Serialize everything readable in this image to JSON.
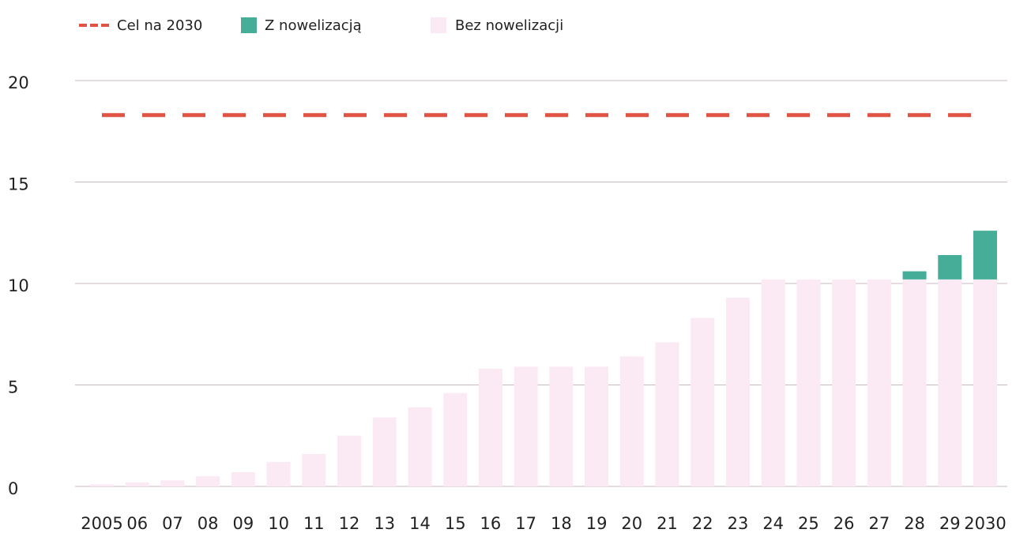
{
  "chart_data": {
    "type": "bar",
    "stacked": true,
    "categories": [
      "2005",
      "06",
      "07",
      "08",
      "09",
      "10",
      "11",
      "12",
      "13",
      "14",
      "15",
      "16",
      "17",
      "18",
      "19",
      "20",
      "21",
      "22",
      "23",
      "24",
      "25",
      "26",
      "27",
      "28",
      "29",
      "2030"
    ],
    "series": [
      {
        "name": "Bez nowelizacji",
        "color": "#fbe9f4",
        "values": [
          0.1,
          0.2,
          0.3,
          0.5,
          0.7,
          1.2,
          1.6,
          2.5,
          3.4,
          3.9,
          4.6,
          5.8,
          5.9,
          5.9,
          5.9,
          6.4,
          7.1,
          8.3,
          9.3,
          10.2,
          10.2,
          10.2,
          10.2,
          10.2,
          10.2,
          10.2
        ]
      },
      {
        "name": "Z nowelizacją",
        "color": "#45ad98",
        "values": [
          null,
          null,
          null,
          null,
          null,
          null,
          null,
          null,
          null,
          null,
          null,
          null,
          null,
          null,
          null,
          null,
          null,
          null,
          null,
          null,
          null,
          null,
          null,
          0.4,
          1.2,
          2.4
        ]
      }
    ],
    "target": {
      "name": "Cel na 2030",
      "value": 18.3,
      "color": "#e05444"
    },
    "ylim": [
      0,
      20
    ],
    "yticks": [
      0,
      5,
      10,
      15,
      20
    ],
    "grid": true,
    "legend": "top-left"
  }
}
